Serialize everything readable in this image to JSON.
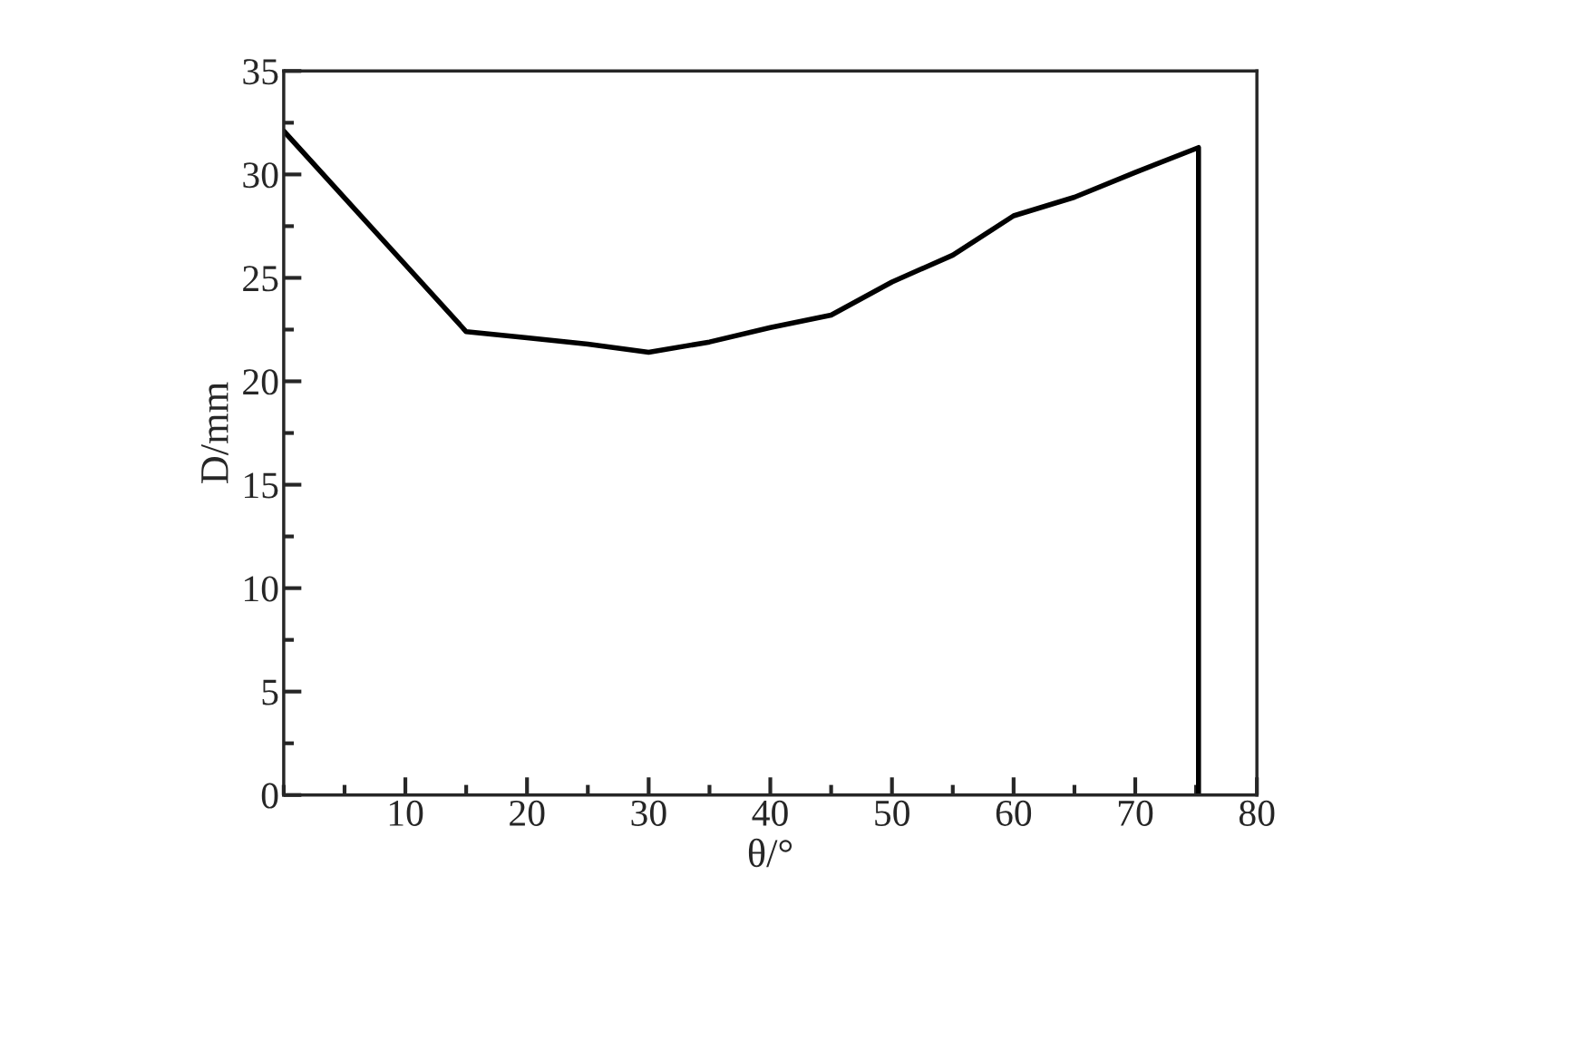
{
  "chart_data": {
    "type": "line",
    "xlabel": "θ/°",
    "ylabel": "D/mm",
    "x": [
      0,
      15,
      20,
      25,
      30,
      35,
      40,
      45,
      50,
      55,
      60,
      65,
      70,
      75.2,
      75.2
    ],
    "series": [
      {
        "color": "#000000",
        "values": [
          32.1,
          22.4,
          22.1,
          21.8,
          21.4,
          21.9,
          22.6,
          23.2,
          24.8,
          26.1,
          28.0,
          28.9,
          30.1,
          31.3,
          0
        ]
      }
    ],
    "xlim": [
      0,
      80
    ],
    "ylim": [
      0,
      35
    ],
    "xticks": [
      10,
      20,
      30,
      40,
      50,
      60,
      70,
      80
    ],
    "yticks": [
      0,
      5,
      10,
      15,
      20,
      25,
      30,
      35
    ],
    "grid": false,
    "legend": false,
    "marker": "none",
    "line_style": "solid"
  }
}
